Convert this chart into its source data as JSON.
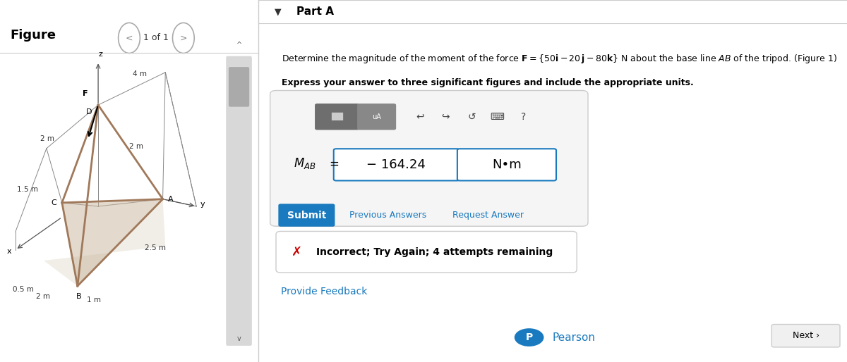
{
  "bg_color": "#ffffff",
  "figure_label": "Figure",
  "nav_label": "1 of 1",
  "part_label": "Part A",
  "problem_text_line2": "Express your answer to three significant figures and include the appropriate units.",
  "answer_value": "− 164.24",
  "units_value": "N•m",
  "submit_label": "Submit",
  "prev_answers_label": "Previous Answers",
  "request_answer_label": "Request Answer",
  "incorrect_text": "Incorrect; Try Again; 4 attempts remaining",
  "feedback_label": "Provide Feedback",
  "next_label": "Next ›",
  "pearson_label": "Pearson",
  "submit_bg": "#1a7abf",
  "submit_fg": "#ffffff",
  "link_color": "#1a7abf",
  "answer_border": "#1a7abf",
  "incorrect_x_color": "#cc0000",
  "tripod_color": "#a0785a",
  "axis_color": "#555555",
  "dim_color": "#333333"
}
